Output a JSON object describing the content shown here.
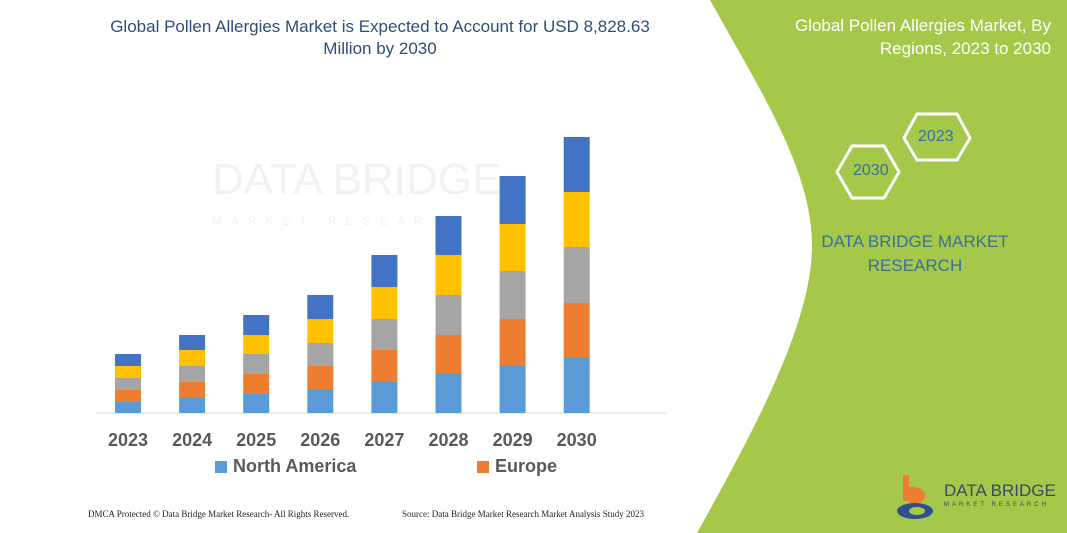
{
  "title": "Global Pollen Allergies Market is Expected to Account for USD 8,828.63 Million by 2030",
  "side_panel": {
    "title": "Global Pollen Allergies Market, By Regions, 2023 to 2030",
    "hex_years": [
      "2030",
      "2023"
    ],
    "brand": "DATA BRIDGE MARKET RESEARCH",
    "logo_text": "DATA BRIDGE",
    "logo_subtext": "MARKET RESEARCH",
    "accent_color": "#a5c84a"
  },
  "watermark": {
    "text": "DATA BRIDGE",
    "subtext": "MARKET RESEARCH"
  },
  "footer": {
    "left": "DMCA Protected © Data Bridge Market Research-  All Rights Reserved.",
    "right": "Source: Data Bridge Market Research  Market Analysis Study 2023"
  },
  "chart_data": {
    "type": "bar",
    "stacked": true,
    "categories": [
      "2023",
      "2024",
      "2025",
      "2026",
      "2027",
      "2028",
      "2029",
      "2030"
    ],
    "series": [
      {
        "name": "North America",
        "color": "#5b9bd5",
        "values": [
          11,
          15,
          19,
          23,
          31,
          39,
          47,
          55
        ]
      },
      {
        "name": "Europe",
        "color": "#ed7d31",
        "values": [
          12,
          16,
          20,
          24,
          32,
          39,
          47,
          55
        ]
      },
      {
        "color": "#a5a5a5",
        "values": [
          12,
          16,
          20,
          23,
          31,
          40,
          48,
          56
        ]
      },
      {
        "color": "#ffc000",
        "values": [
          12,
          16,
          19,
          24,
          32,
          40,
          47,
          55
        ]
      },
      {
        "color": "#4472c4",
        "values": [
          12,
          15,
          20,
          24,
          32,
          39,
          48,
          55
        ]
      }
    ],
    "legend": [
      "North America",
      "Europe"
    ],
    "legend_position": "bottom",
    "grid": false,
    "y_axis_visible": false,
    "note": ""
  }
}
